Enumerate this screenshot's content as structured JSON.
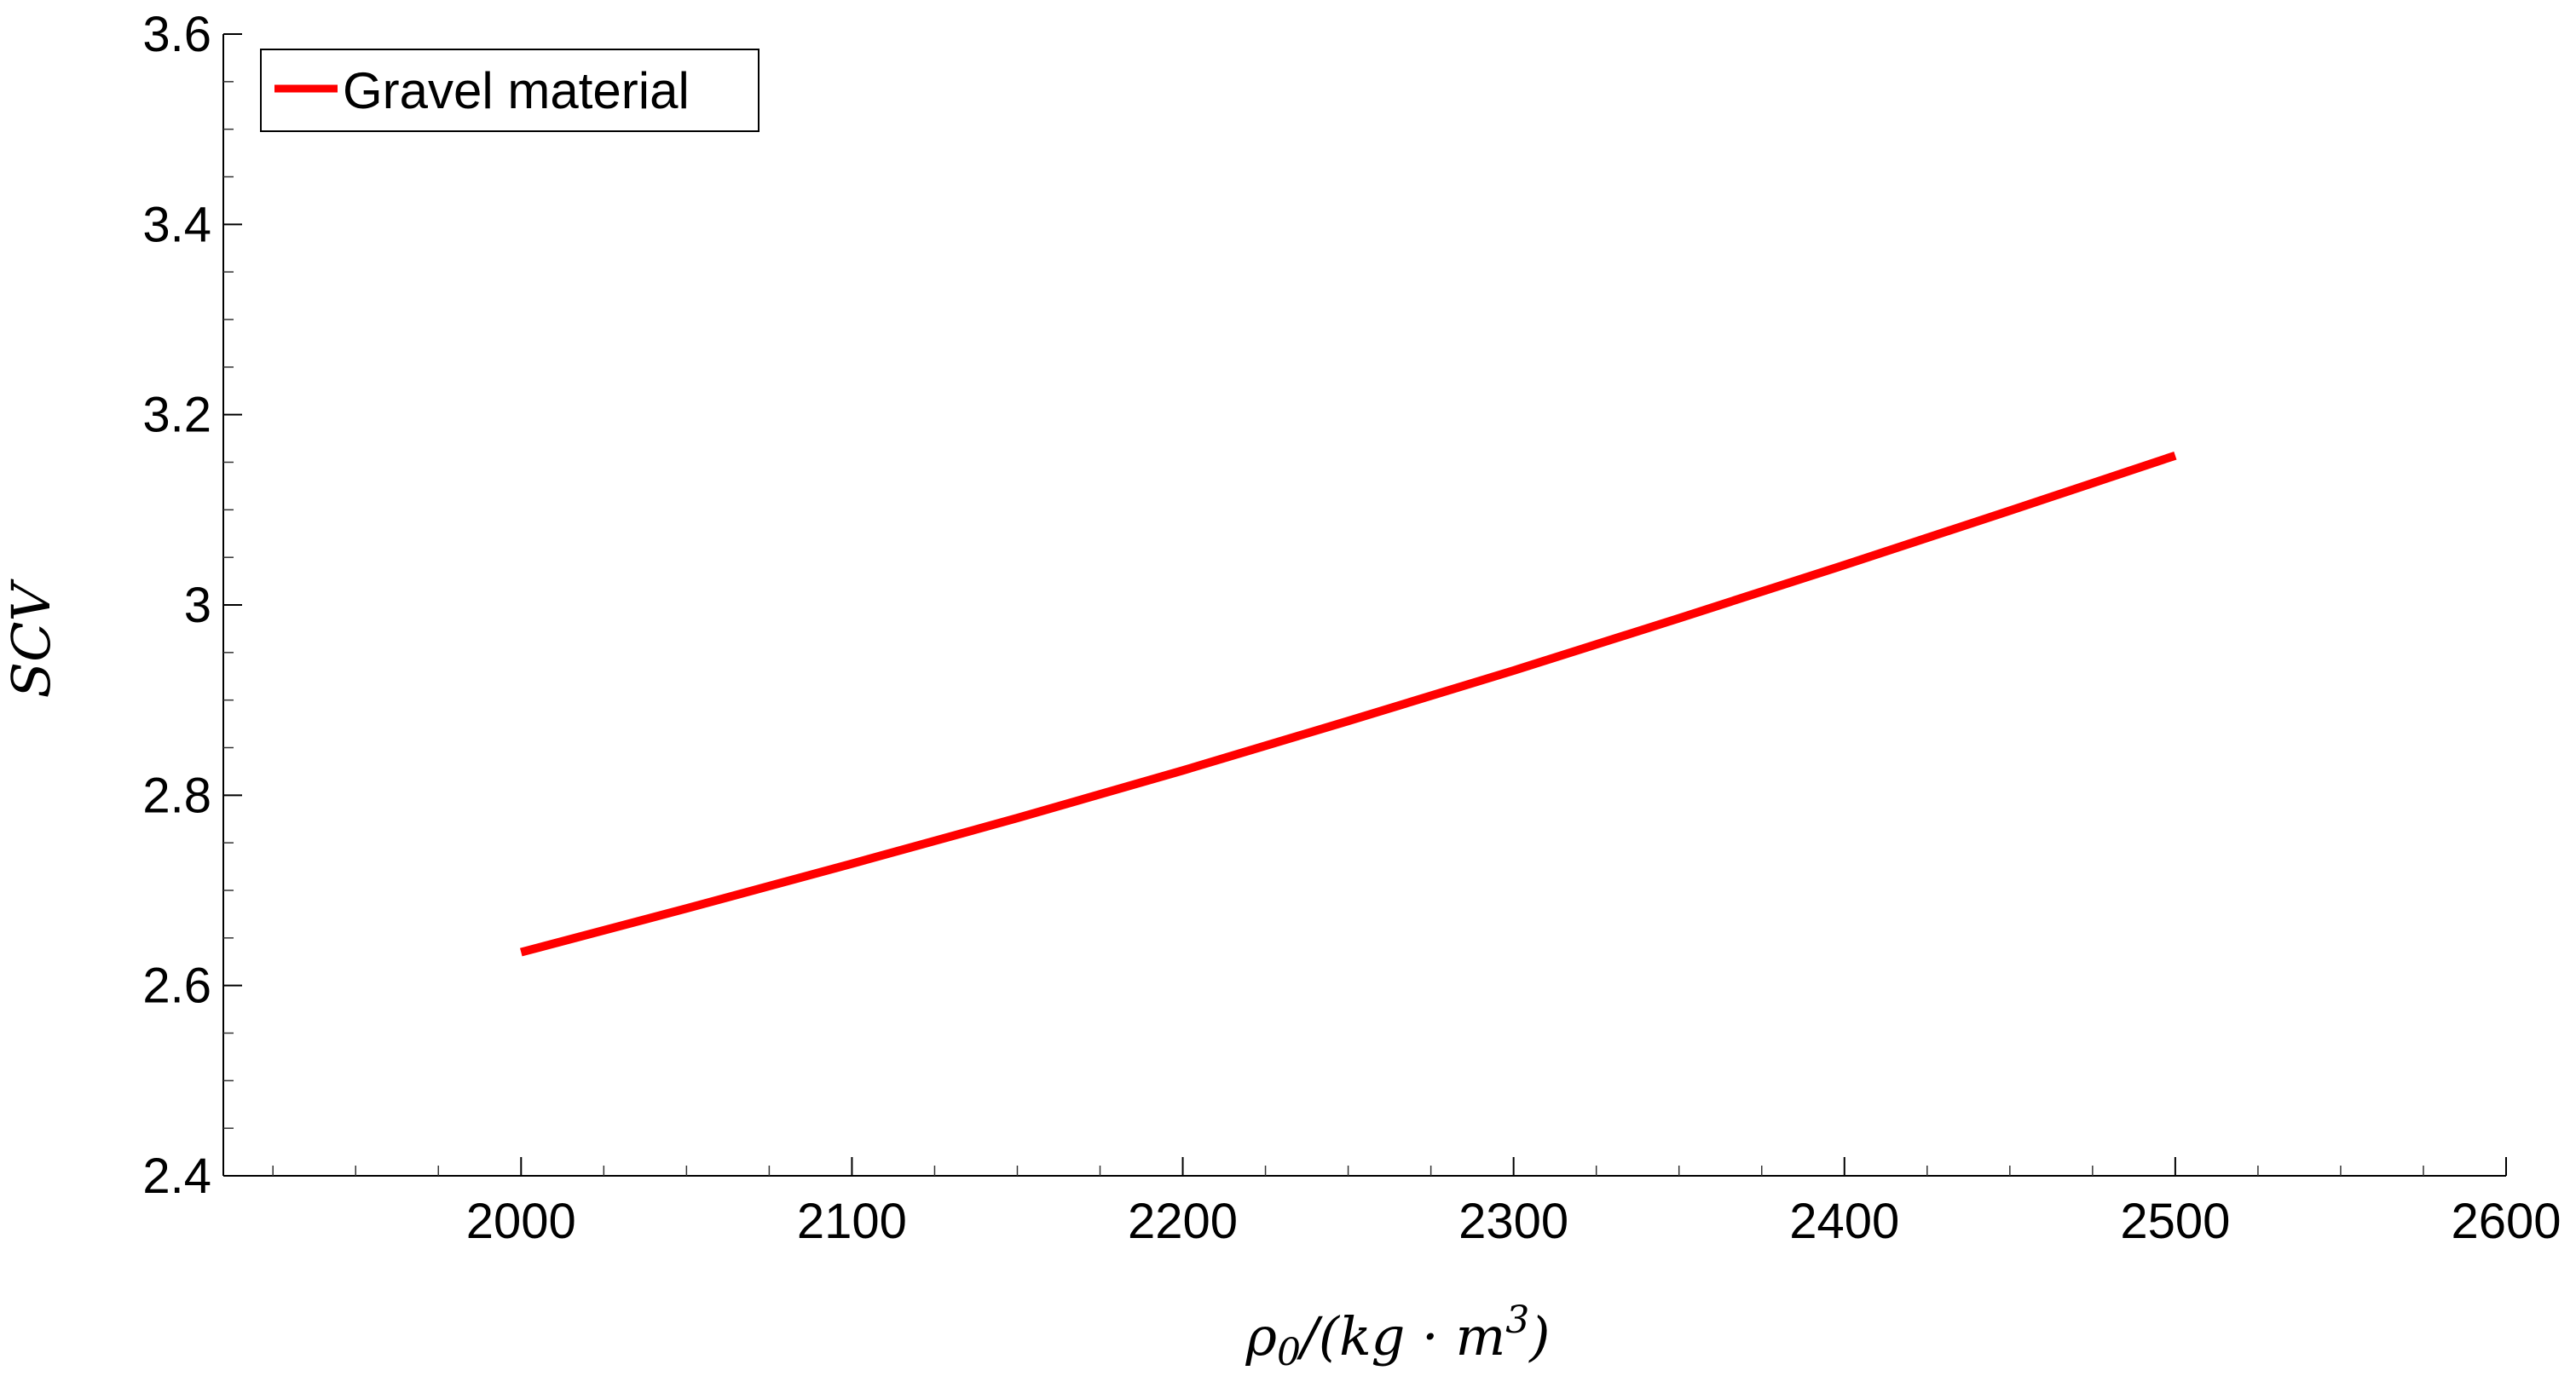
{
  "chart_data": {
    "type": "line",
    "title": "",
    "xlabel": "ρ0/(kg · m3)",
    "xlabel_parts": {
      "rho": "ρ",
      "sub": "0",
      "rest": "/(kg · m",
      "sup": "3",
      "close": ")"
    },
    "ylabel": "SCV",
    "xlim": [
      1910,
      2600
    ],
    "ylim": [
      2.4,
      3.6
    ],
    "xticks": [
      "2000",
      "2100",
      "2200",
      "2300",
      "2400",
      "2500",
      "2600"
    ],
    "yticks": [
      "2.4",
      "2.6",
      "2.8",
      "3",
      "3.2",
      "3.4",
      "3.6"
    ],
    "grid": false,
    "legend_position": "top-left",
    "series": [
      {
        "name": "Gravel material",
        "color": "#ff0000",
        "x": [
          2000,
          2050,
          2100,
          2150,
          2200,
          2250,
          2300,
          2350,
          2400,
          2450,
          2500
        ],
        "y": [
          2.635,
          2.681,
          2.728,
          2.776,
          2.826,
          2.878,
          2.931,
          2.986,
          3.042,
          3.099,
          3.157
        ]
      }
    ]
  }
}
